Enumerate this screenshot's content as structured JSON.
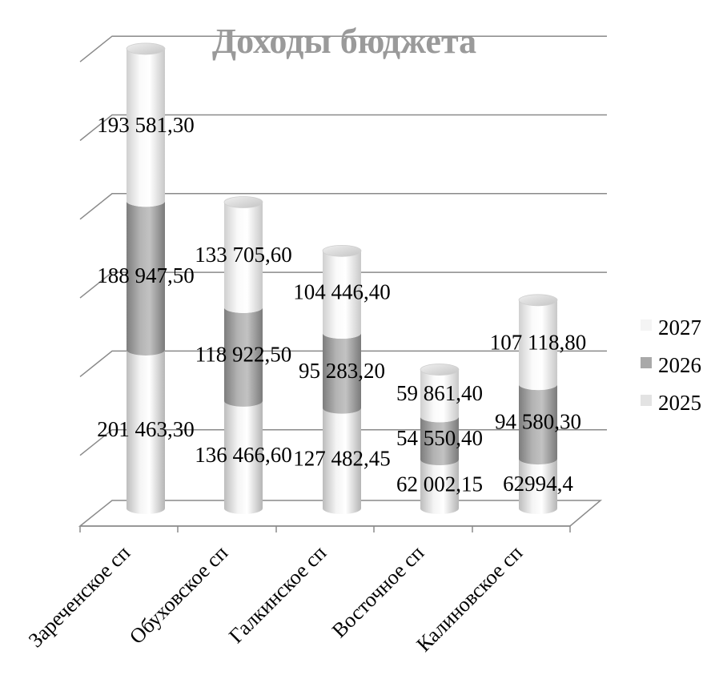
{
  "chart_data": {
    "type": "bar",
    "stacked": true,
    "style": "3d-cylinder",
    "title": "Доходы бюджета",
    "xlabel": "",
    "ylabel": "",
    "grid": true,
    "legend_position": "right",
    "categories": [
      "Зареченское сп",
      "Обуховское сп",
      "Галкинское сп",
      "Восточное сп",
      "Калиновское сп"
    ],
    "series": [
      {
        "name": "2025",
        "values": [
          201463.3,
          136466.6,
          127482.45,
          62002.15,
          62994.4
        ],
        "labels": [
          "201 463,30",
          "136 466,60",
          "127 482,45",
          "62 002,15",
          "62994,4"
        ],
        "color": "#e3e3e3"
      },
      {
        "name": "2026",
        "values": [
          188947.5,
          118922.5,
          95283.2,
          54550.4,
          94580.3
        ],
        "labels": [
          "188 947,50",
          "118 922,50",
          "95 283,20",
          "54 550,40",
          "94 580,30"
        ],
        "color": "#a9a9a9"
      },
      {
        "name": "2027",
        "values": [
          193581.3,
          133705.6,
          104446.4,
          59861.4,
          107118.8
        ],
        "labels": [
          "193 581,30",
          "133 705,60",
          "104 446,40",
          "59 861,40",
          "107 118,80"
        ],
        "color": "#f4f4f4"
      }
    ],
    "legend_order": [
      "2027",
      "2026",
      "2025"
    ],
    "ylim": [
      0,
      650000
    ]
  }
}
